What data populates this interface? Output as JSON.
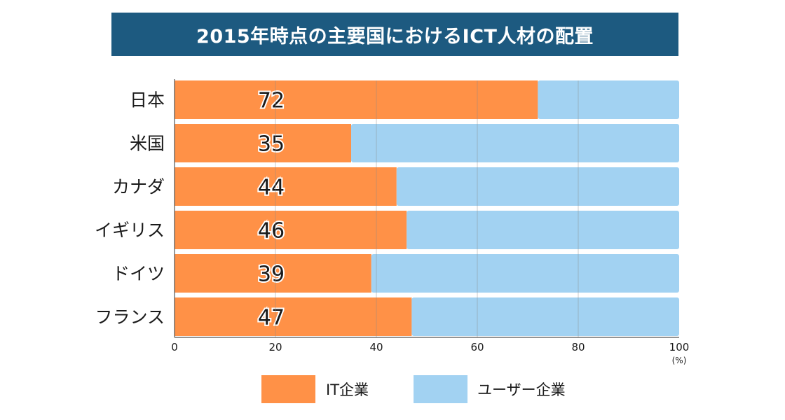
{
  "title": "2015年時点の主要国におけるICT人材の配置",
  "chart_data": {
    "type": "bar",
    "orientation": "horizontal",
    "stacked": true,
    "title": "2015年時点の主要国におけるICT人材の配置",
    "categories": [
      "日本",
      "米国",
      "カナダ",
      "イギリス",
      "ドイツ",
      "フランス"
    ],
    "series": [
      {
        "name": "IT企業",
        "values": [
          72,
          35,
          44,
          46,
          39,
          47
        ],
        "color": "#ff9147"
      },
      {
        "name": "ユーザー企業",
        "values": [
          28,
          65,
          56,
          54,
          61,
          53
        ],
        "color": "#a2d2f2"
      }
    ],
    "xlim": [
      0,
      100
    ],
    "xticks": [
      0,
      20,
      40,
      60,
      80,
      100
    ],
    "unit": "(%)",
    "xlabel": "",
    "ylabel": "",
    "grid": true,
    "legend": "bottom"
  }
}
